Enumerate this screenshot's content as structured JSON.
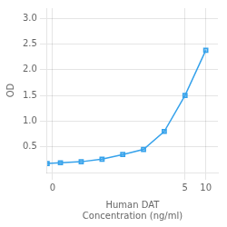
{
  "chart_data": {
    "type": "line",
    "x": [
      0.0,
      0.078,
      0.156,
      0.313,
      0.625,
      1.25,
      2.5,
      5.0,
      10.0
    ],
    "values": [
      0.175,
      0.19,
      0.21,
      0.26,
      0.35,
      0.45,
      0.8,
      1.5,
      2.38
    ],
    "xlabel": "Human DAT\nConcentration (ng/ml)",
    "ylabel": "OD",
    "xlim": [
      0.05,
      15.0
    ],
    "ylim": [
      0.0,
      3.2
    ],
    "xticks": [
      {
        "value": 0.06,
        "label": "0"
      },
      5,
      10
    ],
    "yticks": [
      0.5,
      {
        "value": 1.0,
        "label": "1.0"
      },
      1.5,
      {
        "value": 2.0,
        "label": "2.0"
      },
      2.5,
      {
        "value": 3.0,
        "label": "3.0"
      }
    ],
    "log": "x",
    "grid": true,
    "marker": "square"
  }
}
